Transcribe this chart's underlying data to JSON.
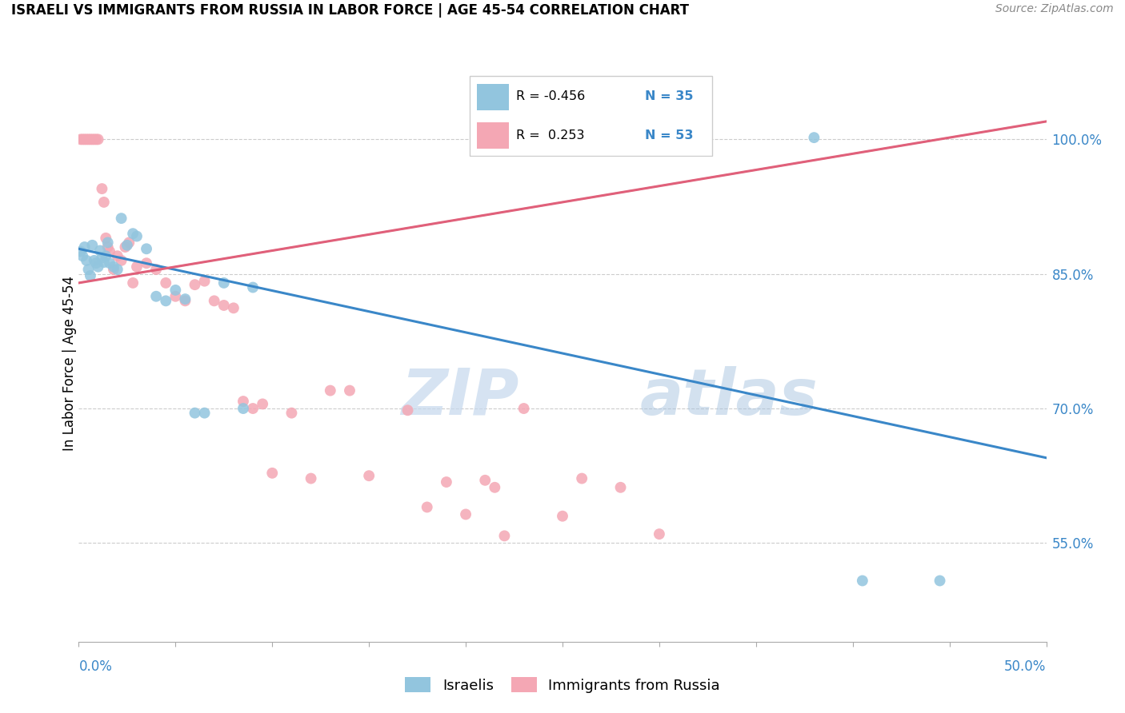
{
  "title": "ISRAELI VS IMMIGRANTS FROM RUSSIA IN LABOR FORCE | AGE 45-54 CORRELATION CHART",
  "source": "Source: ZipAtlas.com",
  "ylabel": "In Labor Force | Age 45-54",
  "right_yticks": [
    "100.0%",
    "85.0%",
    "70.0%",
    "55.0%"
  ],
  "right_ytick_vals": [
    1.0,
    0.85,
    0.7,
    0.55
  ],
  "xmin": 0.0,
  "xmax": 0.5,
  "ymin": 0.44,
  "ymax": 1.06,
  "legend_R_blue": "-0.456",
  "legend_N_blue": "35",
  "legend_R_pink": "0.253",
  "legend_N_pink": "53",
  "blue_color": "#92C5DE",
  "pink_color": "#F4A7B4",
  "blue_line_color": "#3A87C8",
  "pink_line_color": "#E0607A",
  "watermark_zip": "ZIP",
  "watermark_atlas": "atlas",
  "israelis_x": [
    0.001,
    0.002,
    0.003,
    0.004,
    0.005,
    0.006,
    0.007,
    0.008,
    0.009,
    0.01,
    0.011,
    0.012,
    0.013,
    0.014,
    0.015,
    0.016,
    0.018,
    0.02,
    0.022,
    0.025,
    0.028,
    0.03,
    0.035,
    0.04,
    0.045,
    0.05,
    0.055,
    0.06,
    0.065,
    0.075,
    0.085,
    0.09,
    0.38,
    0.405,
    0.445
  ],
  "israelis_y": [
    0.875,
    0.87,
    0.88,
    0.865,
    0.855,
    0.848,
    0.882,
    0.865,
    0.862,
    0.858,
    0.876,
    0.868,
    0.863,
    0.87,
    0.885,
    0.862,
    0.858,
    0.855,
    0.912,
    0.882,
    0.895,
    0.892,
    0.878,
    0.825,
    0.82,
    0.832,
    0.822,
    0.695,
    0.695,
    0.84,
    0.7,
    0.835,
    1.002,
    0.508,
    0.508
  ],
  "russia_x": [
    0.001,
    0.002,
    0.003,
    0.004,
    0.005,
    0.006,
    0.007,
    0.008,
    0.009,
    0.01,
    0.012,
    0.013,
    0.014,
    0.015,
    0.016,
    0.018,
    0.02,
    0.022,
    0.024,
    0.026,
    0.028,
    0.03,
    0.035,
    0.04,
    0.045,
    0.05,
    0.055,
    0.06,
    0.065,
    0.07,
    0.075,
    0.08,
    0.085,
    0.09,
    0.095,
    0.1,
    0.11,
    0.12,
    0.13,
    0.14,
    0.15,
    0.17,
    0.18,
    0.19,
    0.2,
    0.21,
    0.215,
    0.22,
    0.23,
    0.25,
    0.26,
    0.28,
    0.3
  ],
  "russia_y": [
    1.0,
    1.0,
    1.0,
    1.0,
    1.0,
    1.0,
    1.0,
    1.0,
    1.0,
    1.0,
    0.945,
    0.93,
    0.89,
    0.88,
    0.875,
    0.855,
    0.87,
    0.865,
    0.88,
    0.885,
    0.84,
    0.858,
    0.862,
    0.855,
    0.84,
    0.825,
    0.82,
    0.838,
    0.842,
    0.82,
    0.815,
    0.812,
    0.708,
    0.7,
    0.705,
    0.628,
    0.695,
    0.622,
    0.72,
    0.72,
    0.625,
    0.698,
    0.59,
    0.618,
    0.582,
    0.62,
    0.612,
    0.558,
    0.7,
    0.58,
    0.622,
    0.612,
    0.56
  ],
  "blue_trend_x0": 0.0,
  "blue_trend_y0": 0.878,
  "blue_trend_x1": 0.5,
  "blue_trend_y1": 0.645,
  "pink_trend_x0": 0.0,
  "pink_trend_y0": 0.84,
  "pink_trend_x1": 0.5,
  "pink_trend_y1": 1.02
}
